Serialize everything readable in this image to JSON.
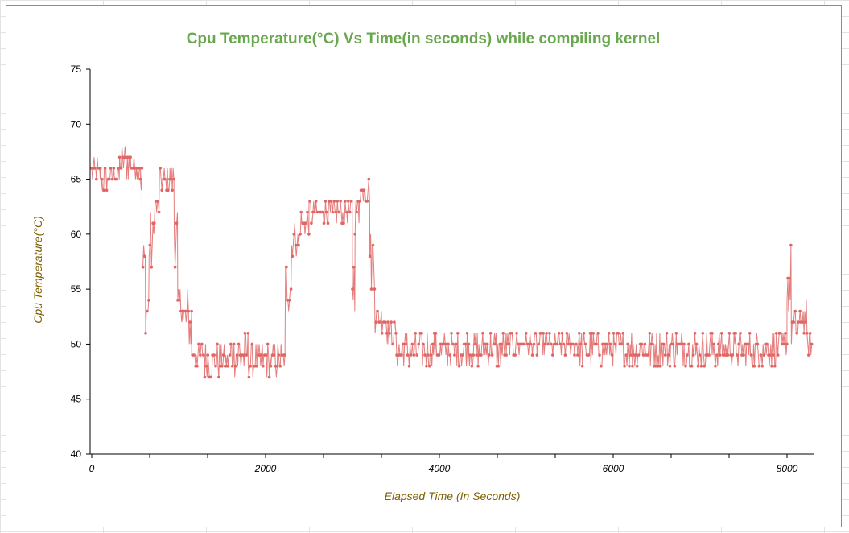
{
  "colors": {
    "title": "#6aa84f",
    "axis_label": "#7f6000",
    "series": "#e06666",
    "axis": "#000000"
  },
  "chart_data": {
    "type": "line",
    "title": "Cpu Temperature(°C) Vs Time(in seconds) while compiling kernel",
    "xlabel": "Elapsed Time (In Seconds)",
    "ylabel": "Cpu Temperature(°C)",
    "xlim": [
      0,
      8300
    ],
    "ylim": [
      40,
      75
    ],
    "xticks": [
      0,
      2000,
      4000,
      6000,
      8000
    ],
    "yticks": [
      40,
      45,
      50,
      55,
      60,
      65,
      70,
      75
    ],
    "grid": false,
    "legend": "none",
    "markers": true,
    "series": [
      {
        "color": "#e06666",
        "segments": [
          {
            "from": 0,
            "to": 100,
            "min": 64,
            "max": 67
          },
          {
            "from": 100,
            "to": 200,
            "min": 64,
            "max": 66
          },
          {
            "from": 200,
            "to": 320,
            "min": 65,
            "max": 66
          },
          {
            "from": 320,
            "to": 450,
            "min": 65,
            "max": 68
          },
          {
            "from": 450,
            "to": 560,
            "min": 65,
            "max": 67
          },
          {
            "from": 560,
            "to": 580,
            "min": 63,
            "max": 67
          },
          {
            "from": 580,
            "to": 620,
            "min": 54,
            "max": 60
          },
          {
            "from": 620,
            "to": 660,
            "min": 51,
            "max": 55
          },
          {
            "from": 660,
            "to": 720,
            "min": 56,
            "max": 62
          },
          {
            "from": 720,
            "to": 780,
            "min": 61,
            "max": 64
          },
          {
            "from": 780,
            "to": 900,
            "min": 64,
            "max": 66
          },
          {
            "from": 900,
            "to": 950,
            "min": 64,
            "max": 66
          },
          {
            "from": 950,
            "to": 990,
            "min": 57,
            "max": 63
          },
          {
            "from": 990,
            "to": 1050,
            "min": 52,
            "max": 55
          },
          {
            "from": 1050,
            "to": 1150,
            "min": 49,
            "max": 55
          },
          {
            "from": 1150,
            "to": 1300,
            "min": 48,
            "max": 50
          },
          {
            "from": 1300,
            "to": 1600,
            "min": 47,
            "max": 50
          },
          {
            "from": 1600,
            "to": 1800,
            "min": 47,
            "max": 51
          },
          {
            "from": 1800,
            "to": 2230,
            "min": 47,
            "max": 50
          },
          {
            "from": 2230,
            "to": 2300,
            "min": 53,
            "max": 58
          },
          {
            "from": 2300,
            "to": 2400,
            "min": 58,
            "max": 61
          },
          {
            "from": 2400,
            "to": 2500,
            "min": 60,
            "max": 62
          },
          {
            "from": 2500,
            "to": 2700,
            "min": 61,
            "max": 63
          },
          {
            "from": 2700,
            "to": 3000,
            "min": 61,
            "max": 63
          },
          {
            "from": 3000,
            "to": 3030,
            "min": 53,
            "max": 58
          },
          {
            "from": 3030,
            "to": 3080,
            "min": 60,
            "max": 64
          },
          {
            "from": 3080,
            "to": 3200,
            "min": 63,
            "max": 65
          },
          {
            "from": 3200,
            "to": 3260,
            "min": 55,
            "max": 61
          },
          {
            "from": 3260,
            "to": 3400,
            "min": 51,
            "max": 54
          },
          {
            "from": 3400,
            "to": 3500,
            "min": 50,
            "max": 52
          },
          {
            "from": 3500,
            "to": 4800,
            "min": 48,
            "max": 51
          },
          {
            "from": 4800,
            "to": 5600,
            "min": 49,
            "max": 51
          },
          {
            "from": 5600,
            "to": 6500,
            "min": 48,
            "max": 51
          },
          {
            "from": 6500,
            "to": 7900,
            "min": 48,
            "max": 51
          },
          {
            "from": 7900,
            "to": 8000,
            "min": 49,
            "max": 51
          },
          {
            "from": 8000,
            "to": 8050,
            "min": 52,
            "max": 59
          },
          {
            "from": 8050,
            "to": 8150,
            "min": 50,
            "max": 53
          },
          {
            "from": 8150,
            "to": 8230,
            "min": 51,
            "max": 54
          },
          {
            "from": 8230,
            "to": 8300,
            "min": 49,
            "max": 51
          }
        ]
      }
    ]
  }
}
